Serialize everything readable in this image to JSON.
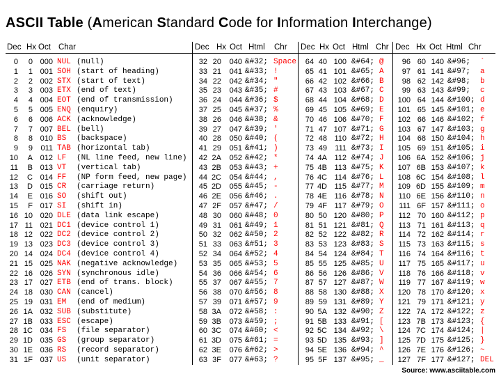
{
  "title": {
    "prefix": "ASCII Table",
    "paren_open": " (",
    "words": [
      {
        "initial": "A",
        "rest": "merican "
      },
      {
        "initial": "S",
        "rest": "tandard "
      },
      {
        "initial": "C",
        "rest": "ode for "
      },
      {
        "initial": "I",
        "rest": "nformation "
      },
      {
        "initial": "I",
        "rest": "nterchange"
      }
    ],
    "paren_close": ")"
  },
  "headers": {
    "control": [
      "Dec",
      "Hx",
      "Oct",
      "Char"
    ],
    "printable": [
      "Dec",
      "Hx",
      "Oct",
      "Html",
      "Chr"
    ]
  },
  "colors": {
    "char": "#ff0000",
    "text": "#000000"
  },
  "control_rows": [
    [
      "0",
      "0",
      "000",
      "NUL",
      "(null)"
    ],
    [
      "1",
      "1",
      "001",
      "SOH",
      "(start of heading)"
    ],
    [
      "2",
      "2",
      "002",
      "STX",
      "(start of text)"
    ],
    [
      "3",
      "3",
      "003",
      "ETX",
      "(end of text)"
    ],
    [
      "4",
      "4",
      "004",
      "EOT",
      "(end of transmission)"
    ],
    [
      "5",
      "5",
      "005",
      "ENQ",
      "(enquiry)"
    ],
    [
      "6",
      "6",
      "006",
      "ACK",
      "(acknowledge)"
    ],
    [
      "7",
      "7",
      "007",
      "BEL",
      "(bell)"
    ],
    [
      "8",
      "8",
      "010",
      "BS",
      "(backspace)"
    ],
    [
      "9",
      "9",
      "011",
      "TAB",
      "(horizontal tab)"
    ],
    [
      "10",
      "A",
      "012",
      "LF",
      "(NL line feed, new line)"
    ],
    [
      "11",
      "B",
      "013",
      "VT",
      "(vertical tab)"
    ],
    [
      "12",
      "C",
      "014",
      "FF",
      "(NP form feed, new page)"
    ],
    [
      "13",
      "D",
      "015",
      "CR",
      "(carriage return)"
    ],
    [
      "14",
      "E",
      "016",
      "SO",
      "(shift out)"
    ],
    [
      "15",
      "F",
      "017",
      "SI",
      "(shift in)"
    ],
    [
      "16",
      "10",
      "020",
      "DLE",
      "(data link escape)"
    ],
    [
      "17",
      "11",
      "021",
      "DC1",
      "(device control 1)"
    ],
    [
      "18",
      "12",
      "022",
      "DC2",
      "(device control 2)"
    ],
    [
      "19",
      "13",
      "023",
      "DC3",
      "(device control 3)"
    ],
    [
      "20",
      "14",
      "024",
      "DC4",
      "(device control 4)"
    ],
    [
      "21",
      "15",
      "025",
      "NAK",
      "(negative acknowledge)"
    ],
    [
      "22",
      "16",
      "026",
      "SYN",
      "(synchronous idle)"
    ],
    [
      "23",
      "17",
      "027",
      "ETB",
      "(end of trans. block)"
    ],
    [
      "24",
      "18",
      "030",
      "CAN",
      "(cancel)"
    ],
    [
      "25",
      "19",
      "031",
      "EM",
      "(end of medium)"
    ],
    [
      "26",
      "1A",
      "032",
      "SUB",
      "(substitute)"
    ],
    [
      "27",
      "1B",
      "033",
      "ESC",
      "(escape)"
    ],
    [
      "28",
      "1C",
      "034",
      "FS",
      "(file separator)"
    ],
    [
      "29",
      "1D",
      "035",
      "GS",
      "(group separator)"
    ],
    [
      "30",
      "1E",
      "036",
      "RS",
      "(record separator)"
    ],
    [
      "31",
      "1F",
      "037",
      "US",
      "(unit separator)"
    ]
  ],
  "sections": [
    [
      [
        "32",
        "20",
        "040",
        "&#32;",
        "Space"
      ],
      [
        "33",
        "21",
        "041",
        "&#33;",
        "!"
      ],
      [
        "34",
        "22",
        "042",
        "&#34;",
        "\""
      ],
      [
        "35",
        "23",
        "043",
        "&#35;",
        "#"
      ],
      [
        "36",
        "24",
        "044",
        "&#36;",
        "$"
      ],
      [
        "37",
        "25",
        "045",
        "&#37;",
        "%"
      ],
      [
        "38",
        "26",
        "046",
        "&#38;",
        "&"
      ],
      [
        "39",
        "27",
        "047",
        "&#39;",
        "'"
      ],
      [
        "40",
        "28",
        "050",
        "&#40;",
        "("
      ],
      [
        "41",
        "29",
        "051",
        "&#41;",
        ")"
      ],
      [
        "42",
        "2A",
        "052",
        "&#42;",
        "*"
      ],
      [
        "43",
        "2B",
        "053",
        "&#43;",
        "+"
      ],
      [
        "44",
        "2C",
        "054",
        "&#44;",
        ","
      ],
      [
        "45",
        "2D",
        "055",
        "&#45;",
        "-"
      ],
      [
        "46",
        "2E",
        "056",
        "&#46;",
        "."
      ],
      [
        "47",
        "2F",
        "057",
        "&#47;",
        "/"
      ],
      [
        "48",
        "30",
        "060",
        "&#48;",
        "0"
      ],
      [
        "49",
        "31",
        "061",
        "&#49;",
        "1"
      ],
      [
        "50",
        "32",
        "062",
        "&#50;",
        "2"
      ],
      [
        "51",
        "33",
        "063",
        "&#51;",
        "3"
      ],
      [
        "52",
        "34",
        "064",
        "&#52;",
        "4"
      ],
      [
        "53",
        "35",
        "065",
        "&#53;",
        "5"
      ],
      [
        "54",
        "36",
        "066",
        "&#54;",
        "6"
      ],
      [
        "55",
        "37",
        "067",
        "&#55;",
        "7"
      ],
      [
        "56",
        "38",
        "070",
        "&#56;",
        "8"
      ],
      [
        "57",
        "39",
        "071",
        "&#57;",
        "9"
      ],
      [
        "58",
        "3A",
        "072",
        "&#58;",
        ":"
      ],
      [
        "59",
        "3B",
        "073",
        "&#59;",
        ";"
      ],
      [
        "60",
        "3C",
        "074",
        "&#60;",
        "<"
      ],
      [
        "61",
        "3D",
        "075",
        "&#61;",
        "="
      ],
      [
        "62",
        "3E",
        "076",
        "&#62;",
        ">"
      ],
      [
        "63",
        "3F",
        "077",
        "&#63;",
        "?"
      ]
    ],
    [
      [
        "64",
        "40",
        "100",
        "&#64;",
        "@"
      ],
      [
        "65",
        "41",
        "101",
        "&#65;",
        "A"
      ],
      [
        "66",
        "42",
        "102",
        "&#66;",
        "B"
      ],
      [
        "67",
        "43",
        "103",
        "&#67;",
        "C"
      ],
      [
        "68",
        "44",
        "104",
        "&#68;",
        "D"
      ],
      [
        "69",
        "45",
        "105",
        "&#69;",
        "E"
      ],
      [
        "70",
        "46",
        "106",
        "&#70;",
        "F"
      ],
      [
        "71",
        "47",
        "107",
        "&#71;",
        "G"
      ],
      [
        "72",
        "48",
        "110",
        "&#72;",
        "H"
      ],
      [
        "73",
        "49",
        "111",
        "&#73;",
        "I"
      ],
      [
        "74",
        "4A",
        "112",
        "&#74;",
        "J"
      ],
      [
        "75",
        "4B",
        "113",
        "&#75;",
        "K"
      ],
      [
        "76",
        "4C",
        "114",
        "&#76;",
        "L"
      ],
      [
        "77",
        "4D",
        "115",
        "&#77;",
        "M"
      ],
      [
        "78",
        "4E",
        "116",
        "&#78;",
        "N"
      ],
      [
        "79",
        "4F",
        "117",
        "&#79;",
        "O"
      ],
      [
        "80",
        "50",
        "120",
        "&#80;",
        "P"
      ],
      [
        "81",
        "51",
        "121",
        "&#81;",
        "Q"
      ],
      [
        "82",
        "52",
        "122",
        "&#82;",
        "R"
      ],
      [
        "83",
        "53",
        "123",
        "&#83;",
        "S"
      ],
      [
        "84",
        "54",
        "124",
        "&#84;",
        "T"
      ],
      [
        "85",
        "55",
        "125",
        "&#85;",
        "U"
      ],
      [
        "86",
        "56",
        "126",
        "&#86;",
        "V"
      ],
      [
        "87",
        "57",
        "127",
        "&#87;",
        "W"
      ],
      [
        "88",
        "58",
        "130",
        "&#88;",
        "X"
      ],
      [
        "89",
        "59",
        "131",
        "&#89;",
        "Y"
      ],
      [
        "90",
        "5A",
        "132",
        "&#90;",
        "Z"
      ],
      [
        "91",
        "5B",
        "133",
        "&#91;",
        "["
      ],
      [
        "92",
        "5C",
        "134",
        "&#92;",
        "\\"
      ],
      [
        "93",
        "5D",
        "135",
        "&#93;",
        "]"
      ],
      [
        "94",
        "5E",
        "136",
        "&#94;",
        "^"
      ],
      [
        "95",
        "5F",
        "137",
        "&#95;",
        "_"
      ]
    ],
    [
      [
        "96",
        "60",
        "140",
        "&#96;",
        "`"
      ],
      [
        "97",
        "61",
        "141",
        "&#97;",
        "a"
      ],
      [
        "98",
        "62",
        "142",
        "&#98;",
        "b"
      ],
      [
        "99",
        "63",
        "143",
        "&#99;",
        "c"
      ],
      [
        "100",
        "64",
        "144",
        "&#100;",
        "d"
      ],
      [
        "101",
        "65",
        "145",
        "&#101;",
        "e"
      ],
      [
        "102",
        "66",
        "146",
        "&#102;",
        "f"
      ],
      [
        "103",
        "67",
        "147",
        "&#103;",
        "g"
      ],
      [
        "104",
        "68",
        "150",
        "&#104;",
        "h"
      ],
      [
        "105",
        "69",
        "151",
        "&#105;",
        "i"
      ],
      [
        "106",
        "6A",
        "152",
        "&#106;",
        "j"
      ],
      [
        "107",
        "6B",
        "153",
        "&#107;",
        "k"
      ],
      [
        "108",
        "6C",
        "154",
        "&#108;",
        "l"
      ],
      [
        "109",
        "6D",
        "155",
        "&#109;",
        "m"
      ],
      [
        "110",
        "6E",
        "156",
        "&#110;",
        "n"
      ],
      [
        "111",
        "6F",
        "157",
        "&#111;",
        "o"
      ],
      [
        "112",
        "70",
        "160",
        "&#112;",
        "p"
      ],
      [
        "113",
        "71",
        "161",
        "&#113;",
        "q"
      ],
      [
        "114",
        "72",
        "162",
        "&#114;",
        "r"
      ],
      [
        "115",
        "73",
        "163",
        "&#115;",
        "s"
      ],
      [
        "116",
        "74",
        "164",
        "&#116;",
        "t"
      ],
      [
        "117",
        "75",
        "165",
        "&#117;",
        "u"
      ],
      [
        "118",
        "76",
        "166",
        "&#118;",
        "v"
      ],
      [
        "119",
        "77",
        "167",
        "&#119;",
        "w"
      ],
      [
        "120",
        "78",
        "170",
        "&#120;",
        "x"
      ],
      [
        "121",
        "79",
        "171",
        "&#121;",
        "y"
      ],
      [
        "122",
        "7A",
        "172",
        "&#122;",
        "z"
      ],
      [
        "123",
        "7B",
        "173",
        "&#123;",
        "{"
      ],
      [
        "124",
        "7C",
        "174",
        "&#124;",
        "|"
      ],
      [
        "125",
        "7D",
        "175",
        "&#125;",
        "}"
      ],
      [
        "126",
        "7E",
        "176",
        "&#126;",
        "~"
      ],
      [
        "127",
        "7F",
        "177",
        "&#127;",
        "DEL"
      ]
    ]
  ],
  "source": "Source: www.asciitable.com"
}
